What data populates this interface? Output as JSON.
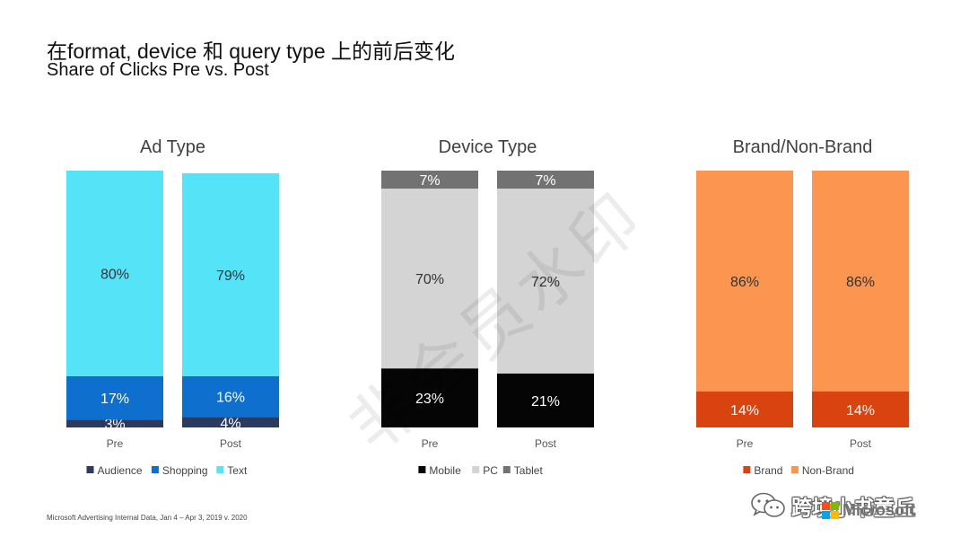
{
  "header": {
    "title": "在format, device 和 query type 上的前后变化",
    "subtitle": "Share of Clicks Pre vs. Post"
  },
  "chart_data": [
    {
      "type": "bar",
      "stacked": true,
      "title": "Ad Type",
      "categories": [
        "Pre",
        "Post"
      ],
      "ylim": [
        0,
        100
      ],
      "unit": "%",
      "legend_position": "bottom",
      "grid": false,
      "series": [
        {
          "name": "Audience",
          "values": [
            3,
            4
          ],
          "color": "#2b3a5e",
          "label_color": "#ffffff"
        },
        {
          "name": "Shopping",
          "values": [
            17,
            16
          ],
          "color": "#0f6fcf",
          "label_color": "#ffffff"
        },
        {
          "name": "Text",
          "values": [
            80,
            79
          ],
          "color": "#55e3f8",
          "label_color": "#333333"
        }
      ]
    },
    {
      "type": "bar",
      "stacked": true,
      "title": "Device Type",
      "categories": [
        "Pre",
        "Post"
      ],
      "ylim": [
        0,
        100
      ],
      "unit": "%",
      "legend_position": "bottom",
      "grid": false,
      "series": [
        {
          "name": "Mobile",
          "values": [
            23,
            21
          ],
          "color": "#050505",
          "label_color": "#ffffff"
        },
        {
          "name": "PC",
          "values": [
            70,
            72
          ],
          "color": "#d4d4d4",
          "label_color": "#333333"
        },
        {
          "name": "Tablet",
          "values": [
            7,
            7
          ],
          "color": "#727272",
          "label_color": "#ffffff"
        }
      ]
    },
    {
      "type": "bar",
      "stacked": true,
      "title": "Brand/Non-Brand",
      "categories": [
        "Pre",
        "Post"
      ],
      "ylim": [
        0,
        100
      ],
      "unit": "%",
      "legend_position": "bottom",
      "grid": false,
      "series": [
        {
          "name": "Brand",
          "values": [
            14,
            14
          ],
          "color": "#d8430f",
          "label_color": "#ffffff"
        },
        {
          "name": "Non-Brand",
          "values": [
            86,
            86
          ],
          "color": "#fb9550",
          "label_color": "#333333"
        }
      ]
    }
  ],
  "watermark": "非会员水印",
  "footnote": "Microsoft Advertising Internal Data, Jan 4 – Apr 3, 2019 v. 2020",
  "wechat_account": "跨境小书童丘",
  "logo": {
    "text": "Microsoft",
    "colors": [
      "#f25022",
      "#7fba00",
      "#00a4ef",
      "#ffb900"
    ]
  },
  "icons": {
    "wechat": "wechat-icon"
  }
}
